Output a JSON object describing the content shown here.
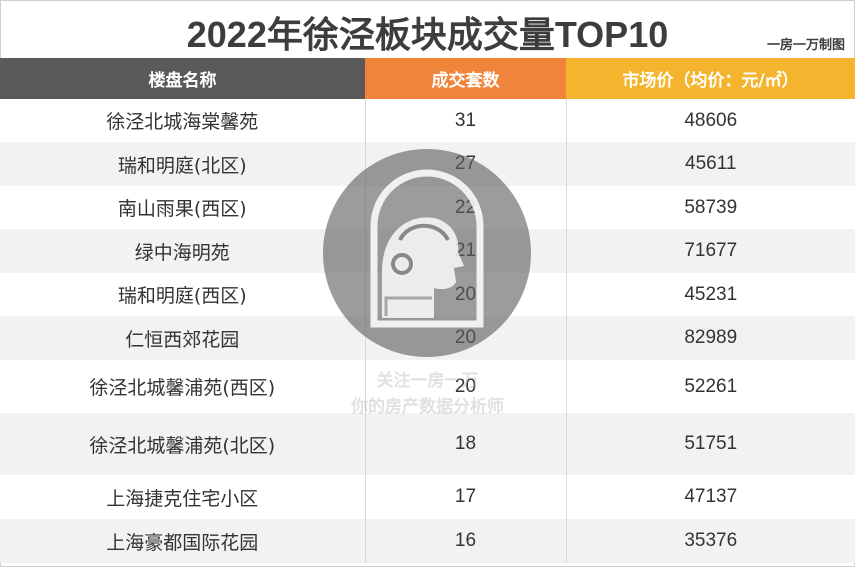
{
  "title": "2022年徐泾板块成交量TOP10",
  "credit": "一房一万制图",
  "headers": {
    "name": "楼盘名称",
    "count": "成交套数",
    "price": "市场价（均价：元/㎡）"
  },
  "rows": [
    {
      "name": "徐泾北城海棠馨苑",
      "count": "31",
      "price": "48606"
    },
    {
      "name": "瑞和明庭(北区)",
      "count": "27",
      "price": "45611"
    },
    {
      "name": "南山雨果(西区)",
      "count": "22",
      "price": "58739"
    },
    {
      "name": "绿中海明苑",
      "count": "21",
      "price": "71677"
    },
    {
      "name": "瑞和明庭(西区)",
      "count": "20",
      "price": "45231"
    },
    {
      "name": "仁恒西郊花园",
      "count": "20",
      "price": "82989"
    },
    {
      "name": "徐泾北城馨浦苑(西区)",
      "count": "20",
      "price": "52261"
    },
    {
      "name": "徐泾北城馨浦苑(北区)",
      "count": "18",
      "price": "51751"
    },
    {
      "name": "上海捷克住宅小区",
      "count": "17",
      "price": "47137"
    },
    {
      "name": "上海豪都国际花园",
      "count": "16",
      "price": "35376"
    }
  ],
  "watermark": {
    "line1": "关注一房一万",
    "line2": "你的房产数据分析师"
  },
  "colors": {
    "header_name": "#5a5a5a",
    "header_count": "#f0843a",
    "header_price": "#f5b42d",
    "stripe": "#f2f2f2"
  }
}
